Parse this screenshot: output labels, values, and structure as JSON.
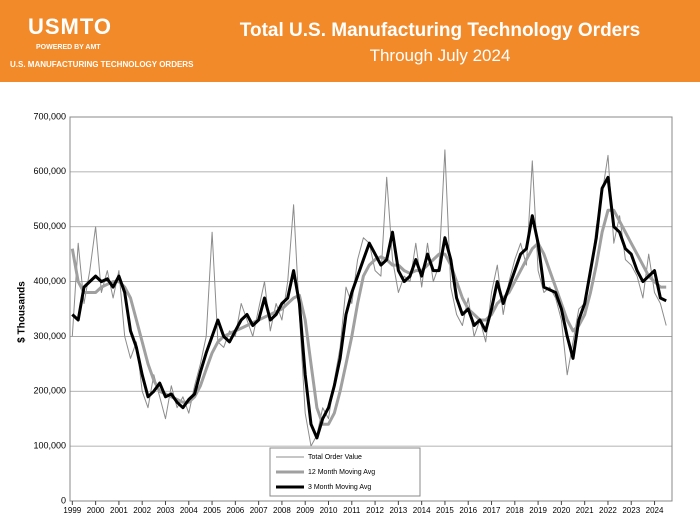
{
  "header": {
    "logo": "USMTO",
    "powered": "POWERED BY AMT",
    "tagline": "U.S. MANUFACTURING TECHNOLOGY ORDERS"
  },
  "chart_data": {
    "type": "line",
    "title": "Total U.S. Manufacturing Technology Orders",
    "subtitle": "Through July 2024",
    "y_label": "$ Thousands",
    "x": [
      1999,
      1999.25,
      1999.5,
      1999.75,
      2000,
      2000.25,
      2000.5,
      2000.75,
      2001,
      2001.25,
      2001.5,
      2001.75,
      2002,
      2002.25,
      2002.5,
      2002.75,
      2003,
      2003.25,
      2003.5,
      2003.75,
      2004,
      2004.25,
      2004.5,
      2004.75,
      2005,
      2005.25,
      2005.5,
      2005.75,
      2006,
      2006.25,
      2006.5,
      2006.75,
      2007,
      2007.25,
      2007.5,
      2007.75,
      2008,
      2008.25,
      2008.5,
      2008.75,
      2009,
      2009.25,
      2009.5,
      2009.75,
      2010,
      2010.25,
      2010.5,
      2010.75,
      2011,
      2011.25,
      2011.5,
      2011.75,
      2012,
      2012.25,
      2012.5,
      2012.75,
      2013,
      2013.25,
      2013.5,
      2013.75,
      2014,
      2014.25,
      2014.5,
      2014.75,
      2015,
      2015.25,
      2015.5,
      2015.75,
      2016,
      2016.25,
      2016.5,
      2016.75,
      2017,
      2017.25,
      2017.5,
      2017.75,
      2018,
      2018.25,
      2018.5,
      2018.75,
      2019,
      2019.25,
      2019.5,
      2019.75,
      2020,
      2020.25,
      2020.5,
      2020.75,
      2021,
      2021.25,
      2021.5,
      2021.75,
      2022,
      2022.25,
      2022.5,
      2022.75,
      2023,
      2023.25,
      2023.5,
      2023.75,
      2024,
      2024.25,
      2024.5
    ],
    "series": [
      {
        "name": "Total Order Value",
        "color": "#8c8c8c",
        "width": 1,
        "values": [
          300000,
          470000,
          360000,
          420000,
          500000,
          380000,
          420000,
          370000,
          420000,
          300000,
          260000,
          290000,
          200000,
          170000,
          230000,
          190000,
          150000,
          210000,
          170000,
          190000,
          160000,
          210000,
          250000,
          300000,
          490000,
          290000,
          280000,
          310000,
          300000,
          360000,
          330000,
          300000,
          350000,
          400000,
          310000,
          360000,
          330000,
          400000,
          540000,
          340000,
          160000,
          100000,
          120000,
          170000,
          150000,
          220000,
          280000,
          390000,
          360000,
          440000,
          480000,
          470000,
          420000,
          410000,
          590000,
          440000,
          380000,
          410000,
          400000,
          470000,
          390000,
          470000,
          400000,
          430000,
          640000,
          390000,
          340000,
          320000,
          370000,
          300000,
          330000,
          290000,
          380000,
          430000,
          340000,
          400000,
          440000,
          470000,
          430000,
          620000,
          420000,
          380000,
          390000,
          370000,
          330000,
          230000,
          290000,
          350000,
          360000,
          410000,
          500000,
          560000,
          630000,
          470000,
          520000,
          440000,
          430000,
          410000,
          370000,
          450000,
          380000,
          360000,
          320000
        ]
      },
      {
        "name": "12 Month Moving Avg",
        "color": "#a0a0a0",
        "width": 3,
        "values": [
          460000,
          400000,
          380000,
          380000,
          380000,
          390000,
          395000,
          400000,
          400000,
          390000,
          370000,
          330000,
          290000,
          250000,
          220000,
          200000,
          195000,
          190000,
          185000,
          180000,
          180000,
          190000,
          210000,
          240000,
          270000,
          290000,
          300000,
          305000,
          310000,
          315000,
          320000,
          325000,
          330000,
          335000,
          340000,
          345000,
          350000,
          360000,
          370000,
          375000,
          330000,
          250000,
          170000,
          140000,
          140000,
          160000,
          200000,
          250000,
          300000,
          360000,
          410000,
          430000,
          440000,
          445000,
          440000,
          430000,
          430000,
          420000,
          415000,
          420000,
          420000,
          430000,
          440000,
          450000,
          450000,
          430000,
          400000,
          370000,
          350000,
          340000,
          330000,
          330000,
          340000,
          360000,
          370000,
          380000,
          400000,
          420000,
          440000,
          460000,
          470000,
          450000,
          420000,
          390000,
          360000,
          330000,
          310000,
          320000,
          340000,
          380000,
          430000,
          490000,
          530000,
          530000,
          510000,
          490000,
          470000,
          450000,
          430000,
          410000,
          400000,
          390000,
          390000
        ]
      },
      {
        "name": "3 Month Moving Avg",
        "color": "#000000",
        "width": 3,
        "values": [
          340000,
          330000,
          390000,
          400000,
          410000,
          400000,
          405000,
          390000,
          410000,
          380000,
          310000,
          280000,
          230000,
          190000,
          200000,
          215000,
          190000,
          195000,
          180000,
          170000,
          185000,
          195000,
          235000,
          270000,
          300000,
          330000,
          300000,
          290000,
          310000,
          330000,
          340000,
          320000,
          330000,
          370000,
          330000,
          340000,
          360000,
          370000,
          420000,
          360000,
          230000,
          140000,
          115000,
          150000,
          170000,
          210000,
          260000,
          340000,
          380000,
          410000,
          440000,
          470000,
          450000,
          430000,
          440000,
          490000,
          420000,
          400000,
          410000,
          440000,
          410000,
          450000,
          420000,
          420000,
          480000,
          440000,
          370000,
          340000,
          350000,
          320000,
          330000,
          310000,
          350000,
          400000,
          360000,
          390000,
          420000,
          450000,
          460000,
          520000,
          470000,
          390000,
          385000,
          380000,
          350000,
          300000,
          260000,
          330000,
          360000,
          420000,
          480000,
          570000,
          590000,
          500000,
          490000,
          460000,
          450000,
          420000,
          400000,
          410000,
          420000,
          370000,
          365000
        ]
      }
    ],
    "xlim": [
      1998.9,
      2024.75
    ],
    "xticks": [
      1999,
      2000,
      2001,
      2002,
      2003,
      2004,
      2005,
      2006,
      2007,
      2008,
      2009,
      2010,
      2011,
      2012,
      2013,
      2014,
      2015,
      2016,
      2017,
      2018,
      2019,
      2020,
      2021,
      2022,
      2023,
      2024
    ],
    "ylim": [
      0,
      700000
    ],
    "yticks": [
      0,
      {
        "value": 100000,
        "label": "100,000"
      },
      {
        "value": 200000,
        "label": "200,000"
      },
      {
        "value": 300000,
        "label": "300,000"
      },
      {
        "value": 400000,
        "label": "400,000"
      },
      {
        "value": 500000,
        "label": "500,000"
      },
      {
        "value": 600000,
        "label": "600,000"
      },
      {
        "value": 700000,
        "label": "700,000"
      }
    ],
    "grid": true
  }
}
